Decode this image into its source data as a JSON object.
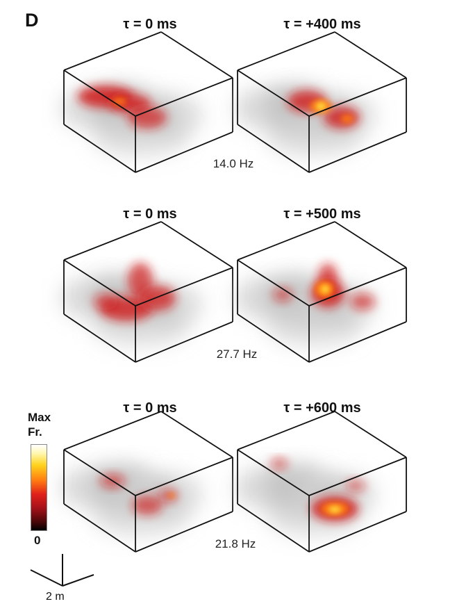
{
  "panel_label": "D",
  "rows": [
    {
      "left_title": "τ = 0 ms",
      "right_title": "τ = +400 ms",
      "frequency": "14.0 Hz"
    },
    {
      "left_title": "τ = 0 ms",
      "right_title": "τ = +500 ms",
      "frequency": "27.7 Hz"
    },
    {
      "left_title": "τ = 0 ms",
      "right_title": "τ = +600 ms",
      "frequency": "21.8 Hz"
    }
  ],
  "colorbar": {
    "max_label_line1": "Max",
    "max_label_line2": "Fr.",
    "min_label": "0"
  },
  "scale_bar": {
    "label": "2 m"
  },
  "colors": {
    "grey_cloud": "#bcbcbc",
    "hot_red": "#d01818",
    "hot_orange": "#ff7a10",
    "hot_yellow": "#ffe040",
    "box_line": "#111111"
  }
}
